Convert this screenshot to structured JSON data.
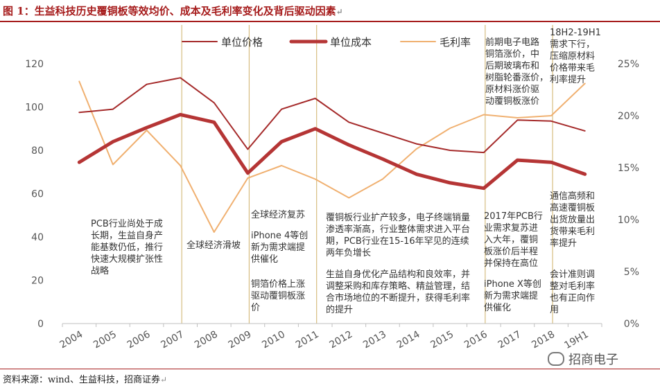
{
  "title": "图 1：生益科技历史覆铜板等效均价、成本及毛利率变化及背后驱动因素",
  "return_mark": "↵",
  "source": "资料来源：wind、生益科技，招商证券",
  "watermark": "招商电子",
  "colors": {
    "price": "#a52a2a",
    "cost": "#b53535",
    "margin": "#f0b070",
    "divider": "#d6bd80",
    "axis": "#bfbfbf",
    "title": "#a61c1c"
  },
  "chart_data": {
    "type": "line",
    "categories": [
      "2004",
      "2005",
      "2006",
      "2007",
      "2008",
      "2009",
      "2010",
      "2011",
      "2012",
      "2013",
      "2014",
      "2015",
      "2016",
      "2017",
      "2018",
      "19H1"
    ],
    "y_left": {
      "ticks": [
        "0",
        "20",
        "40",
        "60",
        "80",
        "100",
        "120"
      ],
      "ylim": [
        0,
        120
      ]
    },
    "y_right": {
      "ticks": [
        "0%",
        "5%",
        "10%",
        "15%",
        "20%",
        "25%"
      ],
      "ylim": [
        0,
        0.25
      ]
    },
    "legend_position": "top",
    "series": [
      {
        "name": "单位价格",
        "axis": "left",
        "style": "thin",
        "values": [
          97.5,
          99,
          110.5,
          113.5,
          102,
          80.5,
          99,
          104,
          93,
          88,
          83,
          80,
          79,
          94,
          93.5,
          89
        ]
      },
      {
        "name": "单位成本",
        "axis": "left",
        "style": "thick",
        "values": [
          74.5,
          84,
          90.5,
          96.5,
          93,
          69.5,
          84,
          90,
          82.5,
          76,
          69,
          65,
          62.5,
          75.5,
          74.5,
          69
        ]
      },
      {
        "name": "毛利率",
        "axis": "right",
        "style": "thin",
        "values": [
          0.233,
          0.153,
          0.186,
          0.152,
          0.088,
          0.14,
          0.152,
          0.139,
          0.121,
          0.139,
          0.168,
          0.188,
          0.201,
          0.198,
          0.2,
          0.231
        ]
      }
    ],
    "dividers_after": [
      "2007",
      "2009",
      "2011",
      "2016",
      "2018"
    ],
    "annotations": [
      {
        "id": "a2004",
        "lines": [
          "PCB行业尚处于成",
          "长期，生益自身产",
          "能基数仍低，推行",
          "快速大规模扩张性",
          "战略"
        ]
      },
      {
        "id": "a2008",
        "lines": [
          "全球经济滑坡"
        ]
      },
      {
        "id": "a2010a",
        "lines": [
          "全球经济复苏"
        ]
      },
      {
        "id": "a2010b",
        "lines": [
          "iPhone 4等创",
          "新为需求端提",
          "供催化"
        ]
      },
      {
        "id": "a2010c",
        "lines": [
          "铜箔价格上涨",
          "驱动覆铜板涨",
          "价"
        ]
      },
      {
        "id": "a2013a",
        "lines": [
          "覆铜板行业扩产较多，电子终端销量",
          "渗透率渐高，行业整体需求进入平台",
          "期，PCB行业在15-16年罕见的连续",
          "两年负增长"
        ]
      },
      {
        "id": "a2013b",
        "lines": [
          "生益自身优化产品结构和良效率，并",
          "调整采购和库存策略、精益管理，结",
          "合市场地位的不断提升，获得毛利率",
          "的提升"
        ]
      },
      {
        "id": "a2017top",
        "lines": [
          "前期电子电路",
          "铜箔涨价，中",
          "后期玻璃布和",
          "树脂轮番涨价，",
          "原材料涨价驱",
          "动覆铜板涨价"
        ]
      },
      {
        "id": "a2017a",
        "lines": [
          "2017年PCB行",
          "业需求复苏进",
          "入大年，覆铜",
          "板涨价后半程",
          "并保持在高位"
        ]
      },
      {
        "id": "a2017b",
        "lines": [
          "iPhone X等创",
          "新为需求端提",
          "供催化"
        ]
      },
      {
        "id": "a19top",
        "lines": [
          "18H2-19H1",
          "需求下行，",
          "压缩原材料",
          "价格带来毛",
          "利率提升"
        ]
      },
      {
        "id": "a19a",
        "lines": [
          "通信高频和",
          "高速覆铜板",
          "出货放量出",
          "货带来毛利",
          "率提升"
        ]
      },
      {
        "id": "a19b",
        "lines": [
          "会计准则调",
          "整对毛利率",
          "也有正向作",
          "用"
        ]
      }
    ]
  }
}
